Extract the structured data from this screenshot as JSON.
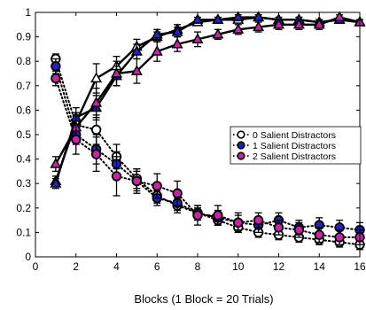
{
  "chart_data": {
    "type": "line",
    "title": "",
    "xlabel": "Blocks (1 Block = 20 Trials)",
    "ylabel": "",
    "xlim": [
      0,
      16
    ],
    "ylim": [
      0,
      1
    ],
    "grid": false,
    "legend_position": "right",
    "x_ticks": [
      0,
      2,
      4,
      6,
      8,
      10,
      12,
      14,
      16
    ],
    "y_ticks": [
      0,
      0.1,
      0.2,
      0.3,
      0.4,
      0.5,
      0.6,
      0.7,
      0.8,
      0.9,
      1
    ],
    "x_tick_labels": [
      "0",
      "2",
      "4",
      "6",
      "8",
      "10",
      "12",
      "14",
      "16"
    ],
    "y_tick_labels": [
      "0",
      "0.1",
      "0.2",
      "0.3",
      "0.4",
      "0.5",
      "0.6",
      "0.7",
      "0.8",
      "0.9",
      "1"
    ],
    "x": [
      1,
      2,
      3,
      4,
      5,
      6,
      7,
      8,
      9,
      10,
      11,
      12,
      13,
      14,
      15,
      16
    ],
    "series": [
      {
        "name": "0 Salient Distractors",
        "color": "#ffffff",
        "marker_up": "triangle",
        "marker_down": "circle",
        "rising": [
          0.31,
          0.55,
          0.73,
          0.78,
          0.86,
          0.9,
          0.93,
          0.96,
          0.97,
          0.97,
          0.98,
          0.97,
          0.97,
          0.96,
          0.97,
          0.96
        ],
        "rising_err": [
          0.02,
          0.04,
          0.06,
          0.04,
          0.03,
          0.02,
          0.02,
          0.01,
          0.01,
          0.01,
          0.01,
          0.01,
          0.01,
          0.01,
          0.01,
          0.01
        ],
        "falling": [
          0.81,
          0.54,
          0.52,
          0.41,
          0.32,
          0.25,
          0.21,
          0.18,
          0.15,
          0.12,
          0.1,
          0.09,
          0.08,
          0.07,
          0.06,
          0.05
        ],
        "falling_err": [
          0.02,
          0.04,
          0.06,
          0.05,
          0.04,
          0.03,
          0.03,
          0.02,
          0.02,
          0.02,
          0.02,
          0.02,
          0.02,
          0.02,
          0.02,
          0.02
        ]
      },
      {
        "name": "1 Salient Distractors",
        "color": "#2222cc",
        "marker_up": "triangle",
        "marker_down": "circle",
        "rising": [
          0.3,
          0.57,
          0.61,
          0.74,
          0.84,
          0.91,
          0.92,
          0.97,
          0.97,
          0.98,
          0.98,
          0.97,
          0.97,
          0.96,
          0.97,
          0.96
        ],
        "rising_err": [
          0.02,
          0.04,
          0.05,
          0.04,
          0.03,
          0.02,
          0.02,
          0.01,
          0.01,
          0.01,
          0.01,
          0.01,
          0.01,
          0.01,
          0.01,
          0.01
        ],
        "falling": [
          0.78,
          0.5,
          0.44,
          0.38,
          0.31,
          0.24,
          0.22,
          0.18,
          0.16,
          0.14,
          0.13,
          0.15,
          0.12,
          0.13,
          0.12,
          0.11
        ],
        "falling_err": [
          0.03,
          0.04,
          0.06,
          0.05,
          0.04,
          0.03,
          0.03,
          0.03,
          0.03,
          0.03,
          0.03,
          0.03,
          0.03,
          0.03,
          0.03,
          0.03
        ]
      },
      {
        "name": "2 Salient Distractors",
        "color": "#cc22aa",
        "marker_up": "triangle",
        "marker_down": "circle",
        "rising": [
          0.38,
          0.53,
          0.63,
          0.75,
          0.76,
          0.84,
          0.87,
          0.89,
          0.91,
          0.93,
          0.94,
          0.95,
          0.95,
          0.95,
          0.98,
          0.96
        ],
        "rising_err": [
          0.03,
          0.05,
          0.06,
          0.05,
          0.05,
          0.04,
          0.03,
          0.03,
          0.02,
          0.02,
          0.02,
          0.02,
          0.02,
          0.02,
          0.01,
          0.01
        ],
        "falling": [
          0.73,
          0.48,
          0.42,
          0.33,
          0.31,
          0.29,
          0.26,
          0.17,
          0.17,
          0.14,
          0.15,
          0.12,
          0.11,
          0.09,
          0.08,
          0.08
        ],
        "falling_err": [
          0.03,
          0.06,
          0.07,
          0.08,
          0.05,
          0.05,
          0.05,
          0.04,
          0.04,
          0.04,
          0.03,
          0.03,
          0.03,
          0.03,
          0.03,
          0.03
        ]
      }
    ]
  }
}
